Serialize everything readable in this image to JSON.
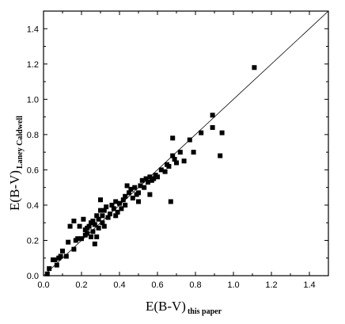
{
  "chart_data": {
    "type": "scatter",
    "title": "",
    "xlabel": "E(B-V)",
    "xlabel_subscript": "this paper",
    "ylabel": "E(B-V)",
    "ylabel_subscript": "Laney Caldwell",
    "xlim": [
      0.0,
      1.5
    ],
    "ylim": [
      0.0,
      1.5
    ],
    "x_ticks": [
      "0.0",
      "0.2",
      "0.4",
      "0.6",
      "0.8",
      "1.0",
      "1.2",
      "1.4"
    ],
    "y_ticks": [
      "0.0",
      "0.2",
      "0.4",
      "0.6",
      "0.8",
      "1.0",
      "1.2",
      "1.4"
    ],
    "grid": false,
    "legend": "none",
    "marker": "filled-square",
    "reference_line": {
      "type": "identity",
      "from": [
        0.0,
        0.0
      ],
      "to": [
        1.5,
        1.5
      ]
    },
    "points": [
      [
        0.02,
        0.01
      ],
      [
        0.03,
        0.04
      ],
      [
        0.05,
        0.09
      ],
      [
        0.06,
        0.09
      ],
      [
        0.07,
        0.06
      ],
      [
        0.08,
        0.1
      ],
      [
        0.09,
        0.11
      ],
      [
        0.1,
        0.14
      ],
      [
        0.12,
        0.11
      ],
      [
        0.13,
        0.19
      ],
      [
        0.14,
        0.28
      ],
      [
        0.16,
        0.15
      ],
      [
        0.16,
        0.31
      ],
      [
        0.17,
        0.2
      ],
      [
        0.18,
        0.21
      ],
      [
        0.19,
        0.28
      ],
      [
        0.2,
        0.21
      ],
      [
        0.21,
        0.32
      ],
      [
        0.22,
        0.23
      ],
      [
        0.22,
        0.26
      ],
      [
        0.23,
        0.27
      ],
      [
        0.23,
        0.24
      ],
      [
        0.24,
        0.28
      ],
      [
        0.25,
        0.22
      ],
      [
        0.25,
        0.3
      ],
      [
        0.26,
        0.25
      ],
      [
        0.26,
        0.31
      ],
      [
        0.27,
        0.18
      ],
      [
        0.27,
        0.29
      ],
      [
        0.28,
        0.34
      ],
      [
        0.28,
        0.22
      ],
      [
        0.29,
        0.27
      ],
      [
        0.29,
        0.32
      ],
      [
        0.3,
        0.37
      ],
      [
        0.3,
        0.43
      ],
      [
        0.31,
        0.3
      ],
      [
        0.31,
        0.34
      ],
      [
        0.32,
        0.37
      ],
      [
        0.32,
        0.28
      ],
      [
        0.33,
        0.39
      ],
      [
        0.34,
        0.33
      ],
      [
        0.35,
        0.35
      ],
      [
        0.36,
        0.4
      ],
      [
        0.37,
        0.38
      ],
      [
        0.38,
        0.42
      ],
      [
        0.38,
        0.34
      ],
      [
        0.39,
        0.36
      ],
      [
        0.4,
        0.41
      ],
      [
        0.41,
        0.38
      ],
      [
        0.42,
        0.43
      ],
      [
        0.43,
        0.45
      ],
      [
        0.43,
        0.4
      ],
      [
        0.44,
        0.51
      ],
      [
        0.45,
        0.47
      ],
      [
        0.46,
        0.49
      ],
      [
        0.47,
        0.44
      ],
      [
        0.48,
        0.5
      ],
      [
        0.49,
        0.46
      ],
      [
        0.5,
        0.47
      ],
      [
        0.5,
        0.42
      ],
      [
        0.51,
        0.51
      ],
      [
        0.52,
        0.54
      ],
      [
        0.53,
        0.5
      ],
      [
        0.54,
        0.55
      ],
      [
        0.55,
        0.53
      ],
      [
        0.56,
        0.46
      ],
      [
        0.56,
        0.56
      ],
      [
        0.57,
        0.54
      ],
      [
        0.58,
        0.55
      ],
      [
        0.59,
        0.57
      ],
      [
        0.6,
        0.56
      ],
      [
        0.62,
        0.6
      ],
      [
        0.64,
        0.59
      ],
      [
        0.65,
        0.63
      ],
      [
        0.66,
        0.62
      ],
      [
        0.67,
        0.42
      ],
      [
        0.68,
        0.68
      ],
      [
        0.68,
        0.78
      ],
      [
        0.69,
        0.66
      ],
      [
        0.7,
        0.64
      ],
      [
        0.72,
        0.7
      ],
      [
        0.74,
        0.65
      ],
      [
        0.77,
        0.77
      ],
      [
        0.79,
        0.7
      ],
      [
        0.83,
        0.81
      ],
      [
        0.89,
        0.91
      ],
      [
        0.89,
        0.84
      ],
      [
        0.93,
        0.68
      ],
      [
        0.94,
        0.81
      ],
      [
        1.11,
        1.18
      ]
    ]
  }
}
